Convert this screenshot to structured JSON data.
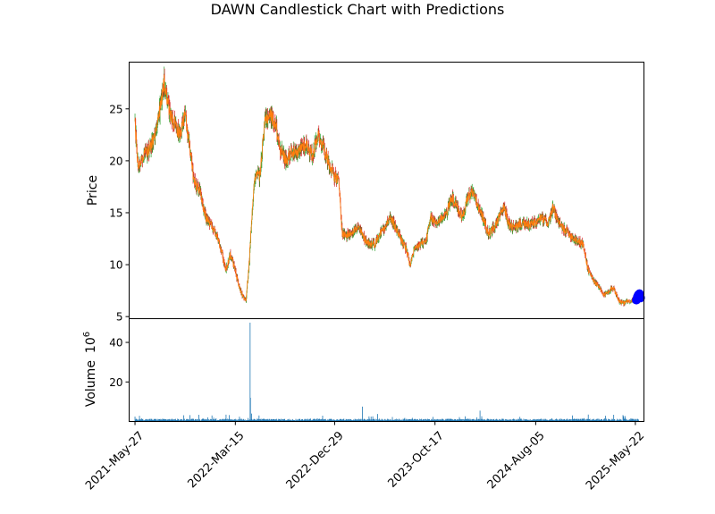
{
  "chart_data": {
    "type": "candlestick",
    "title": "DAWN Candlestick Chart with Predictions",
    "price_panel": {
      "ylabel": "Price",
      "ylim": [
        4.8,
        29.5
      ],
      "yticks": [
        5,
        10,
        15,
        20,
        25
      ]
    },
    "volume_panel": {
      "ylabel": "Volume",
      "ylabel_multiplier": "10",
      "ylabel_exponent": "6",
      "ylim": [
        0,
        52
      ],
      "yticks": [
        20,
        40
      ]
    },
    "x_axis": {
      "start": "2021-05-10",
      "end": "2025-06-16",
      "tick_labels": [
        "2021-May-27",
        "2022-Mar-15",
        "2022-Dec-29",
        "2023-Oct-17",
        "2024-Aug-05",
        "2025-May-22"
      ],
      "tick_dates": [
        "2021-05-27",
        "2022-03-15",
        "2022-12-29",
        "2023-10-17",
        "2024-08-05",
        "2025-05-22"
      ]
    },
    "close_series": [
      [
        "2021-05-27",
        23.5
      ],
      [
        "2021-06-05",
        19.5
      ],
      [
        "2021-06-20",
        20.5
      ],
      [
        "2021-07-05",
        21.0
      ],
      [
        "2021-07-20",
        22.0
      ],
      [
        "2021-08-05",
        24.5
      ],
      [
        "2021-08-20",
        27.5
      ],
      [
        "2021-09-05",
        24.5
      ],
      [
        "2021-09-20",
        23.5
      ],
      [
        "2021-10-05",
        22.5
      ],
      [
        "2021-10-20",
        24.5
      ],
      [
        "2021-11-05",
        20.5
      ],
      [
        "2021-11-15",
        18.0
      ],
      [
        "2021-12-01",
        17.0
      ],
      [
        "2021-12-20",
        14.5
      ],
      [
        "2022-01-10",
        13.5
      ],
      [
        "2022-01-25",
        12.5
      ],
      [
        "2022-02-05",
        11.0
      ],
      [
        "2022-02-15",
        9.5
      ],
      [
        "2022-03-01",
        11.0
      ],
      [
        "2022-03-10",
        10.0
      ],
      [
        "2022-03-25",
        8.0
      ],
      [
        "2022-04-05",
        7.0
      ],
      [
        "2022-04-15",
        6.5
      ],
      [
        "2022-04-25",
        10.5
      ],
      [
        "2022-05-05",
        16.5
      ],
      [
        "2022-05-15",
        19.0
      ],
      [
        "2022-05-25",
        18.5
      ],
      [
        "2022-06-10",
        24.0
      ],
      [
        "2022-06-25",
        24.5
      ],
      [
        "2022-07-10",
        23.5
      ],
      [
        "2022-07-25",
        21.0
      ],
      [
        "2022-08-10",
        20.0
      ],
      [
        "2022-08-25",
        21.0
      ],
      [
        "2022-09-10",
        20.5
      ],
      [
        "2022-09-25",
        21.5
      ],
      [
        "2022-10-10",
        21.5
      ],
      [
        "2022-10-25",
        20.5
      ],
      [
        "2022-11-10",
        22.5
      ],
      [
        "2022-11-25",
        21.5
      ],
      [
        "2022-12-10",
        20.0
      ],
      [
        "2022-12-29",
        18.5
      ],
      [
        "2023-01-10",
        18.0
      ],
      [
        "2023-01-20",
        13.0
      ],
      [
        "2023-02-05",
        12.8
      ],
      [
        "2023-02-20",
        13.3
      ],
      [
        "2023-03-10",
        13.5
      ],
      [
        "2023-03-25",
        12.5
      ],
      [
        "2023-04-10",
        12.0
      ],
      [
        "2023-04-25",
        12.0
      ],
      [
        "2023-05-10",
        13.0
      ],
      [
        "2023-05-25",
        13.8
      ],
      [
        "2023-06-10",
        14.5
      ],
      [
        "2023-06-25",
        13.5
      ],
      [
        "2023-07-10",
        12.5
      ],
      [
        "2023-07-25",
        11.5
      ],
      [
        "2023-08-05",
        10.0
      ],
      [
        "2023-08-20",
        11.5
      ],
      [
        "2023-09-05",
        12.0
      ],
      [
        "2023-09-20",
        12.2
      ],
      [
        "2023-10-05",
        14.5
      ],
      [
        "2023-10-20",
        14.0
      ],
      [
        "2023-11-05",
        14.5
      ],
      [
        "2023-11-20",
        15.0
      ],
      [
        "2023-12-05",
        16.5
      ],
      [
        "2023-12-20",
        15.5
      ],
      [
        "2024-01-05",
        14.5
      ],
      [
        "2024-01-20",
        16.5
      ],
      [
        "2024-02-05",
        17.0
      ],
      [
        "2024-02-20",
        15.5
      ],
      [
        "2024-03-05",
        14.5
      ],
      [
        "2024-03-20",
        13.0
      ],
      [
        "2024-04-05",
        13.5
      ],
      [
        "2024-04-20",
        14.5
      ],
      [
        "2024-05-05",
        15.5
      ],
      [
        "2024-05-20",
        13.8
      ],
      [
        "2024-06-05",
        13.5
      ],
      [
        "2024-06-20",
        14.0
      ],
      [
        "2024-07-10",
        13.8
      ],
      [
        "2024-08-05",
        14.0
      ],
      [
        "2024-08-20",
        14.5
      ],
      [
        "2024-09-10",
        14.0
      ],
      [
        "2024-09-25",
        15.5
      ],
      [
        "2024-10-10",
        14.0
      ],
      [
        "2024-10-25",
        13.5
      ],
      [
        "2024-11-10",
        13.0
      ],
      [
        "2024-11-25",
        12.5
      ],
      [
        "2024-12-10",
        12.2
      ],
      [
        "2024-12-20",
        12.0
      ],
      [
        "2025-01-05",
        9.5
      ],
      [
        "2025-01-20",
        8.5
      ],
      [
        "2025-02-05",
        7.8
      ],
      [
        "2025-02-20",
        7.0
      ],
      [
        "2025-03-05",
        7.5
      ],
      [
        "2025-03-20",
        7.8
      ],
      [
        "2025-04-05",
        6.5
      ],
      [
        "2025-04-20",
        6.3
      ],
      [
        "2025-05-05",
        6.5
      ],
      [
        "2025-05-22",
        6.8
      ],
      [
        "2025-06-01",
        7.0
      ]
    ],
    "predictions": {
      "dates": [
        "2025-05-25",
        "2025-05-28",
        "2025-05-31",
        "2025-06-03",
        "2025-06-06"
      ],
      "values": [
        6.6,
        6.9,
        7.1,
        7.2,
        6.8
      ]
    },
    "volume_spikes": [
      [
        "2021-05-27",
        2.5
      ],
      [
        "2022-04-27",
        50.0
      ],
      [
        "2022-04-28",
        12.0
      ],
      [
        "2022-05-01",
        4.0
      ],
      [
        "2023-03-20",
        7.5
      ],
      [
        "2024-02-25",
        5.5
      ],
      [
        "2025-01-05",
        3.5
      ]
    ],
    "colors": {
      "up": "#2ca02c",
      "down": "#d62728",
      "close_line": "#ff7f0e",
      "volume": "#1f77b4",
      "prediction": "#0000ff"
    }
  }
}
